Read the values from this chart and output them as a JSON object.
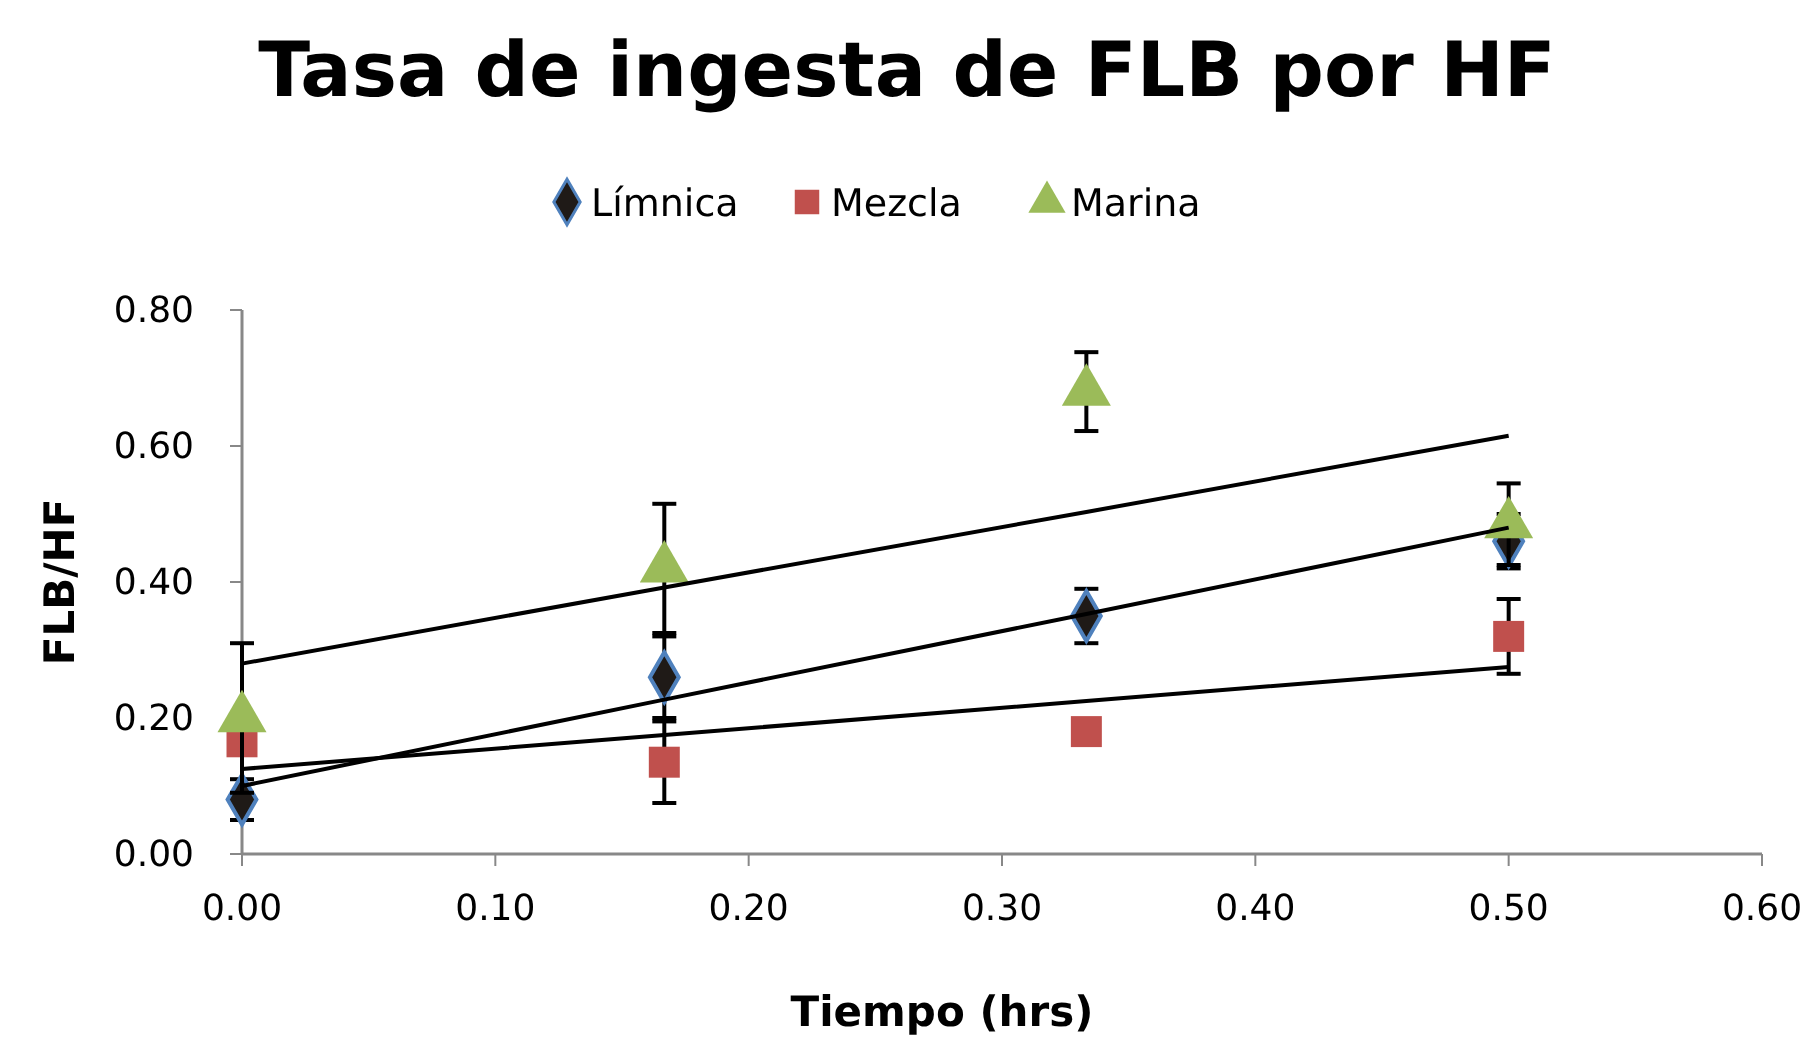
{
  "chart_data": {
    "type": "scatter",
    "title": "Tasa de ingesta de FLB por HF",
    "xlabel": "Tiempo (hrs)",
    "ylabel": "FLB/HF",
    "x": [
      0,
      0.1667,
      0.3333,
      0.5
    ],
    "series": [
      {
        "name": "Límnica",
        "color": "#1f1a17",
        "marker": "diamond",
        "values": [
          0.08,
          0.26,
          0.35,
          0.46
        ],
        "errors": [
          0.03,
          0.06,
          0.04,
          0.04
        ]
      },
      {
        "name": "Mezcla",
        "color": "#c0504d",
        "marker": "square",
        "values": [
          0.165,
          0.135,
          0.18,
          0.32
        ],
        "errors": [
          null,
          0.06,
          null,
          0.055
        ]
      },
      {
        "name": "Marina",
        "color": "#9bbb59",
        "marker": "triangle",
        "values": [
          0.2,
          0.42,
          0.68,
          0.485
        ],
        "errors": [
          0.11,
          0.095,
          0.058,
          0.06
        ]
      },
      {
        "type": "line",
        "color": "#000000",
        "values": [
          0.1,
          0.227,
          0.353,
          0.48
        ]
      },
      {
        "type": "line",
        "color": "#000000",
        "values": [
          0.125,
          0.175,
          0.225,
          0.275
        ]
      },
      {
        "type": "line",
        "color": "#000000",
        "values": [
          0.28,
          0.392,
          0.503,
          0.615
        ]
      }
    ],
    "xlim": [
      0,
      0.6
    ],
    "xticks": [
      {
        "value": 0,
        "label": "0.00"
      },
      {
        "value": 0.1,
        "label": "0.10"
      },
      {
        "value": 0.2,
        "label": "0.20"
      },
      {
        "value": 0.3,
        "label": "0.30"
      },
      {
        "value": 0.4,
        "label": "0.40"
      },
      {
        "value": 0.5,
        "label": "0.50"
      },
      {
        "value": 0.6,
        "label": "0.60"
      }
    ],
    "ylim": [
      0,
      0.8
    ],
    "yticks": [
      {
        "value": 0,
        "label": "0.00"
      },
      {
        "value": 0.2,
        "label": "0.20"
      },
      {
        "value": 0.4,
        "label": "0.40"
      },
      {
        "value": 0.6,
        "label": "0.60"
      },
      {
        "value": 0.8,
        "label": "0.80"
      }
    ],
    "grid": false,
    "legend": "top"
  }
}
